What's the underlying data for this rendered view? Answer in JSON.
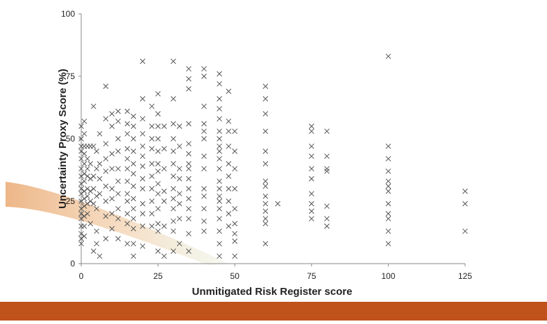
{
  "chart_data": {
    "type": "scatter",
    "x_label": "Unmitigated Risk Register score",
    "y_label": "Uncertainty Proxy Score (%)",
    "xlim": [
      0,
      125
    ],
    "ylim": [
      0,
      100
    ],
    "xticks": [
      0,
      25,
      50,
      75,
      100,
      125
    ],
    "yticks": [
      0,
      25,
      50,
      75,
      100
    ],
    "color": "#555555",
    "x": [
      0,
      0,
      0,
      0,
      0,
      0,
      0,
      0,
      0,
      0,
      0,
      0,
      0,
      0,
      0,
      0,
      0,
      0,
      1,
      1,
      1,
      1,
      1,
      1,
      1,
      1,
      1,
      1,
      1,
      1,
      1,
      2,
      2,
      2,
      2,
      2,
      2,
      2,
      2,
      3,
      3,
      3,
      3,
      3,
      3,
      4,
      4,
      4,
      4,
      4,
      4,
      5,
      5,
      5,
      5,
      5,
      5,
      6,
      6,
      6,
      6,
      6,
      8,
      8,
      8,
      8,
      8,
      8,
      8,
      8,
      8,
      10,
      10,
      10,
      10,
      10,
      10,
      10,
      10,
      12,
      12,
      12,
      12,
      12,
      12,
      12,
      12,
      12,
      12,
      15,
      15,
      15,
      15,
      15,
      15,
      15,
      15,
      15,
      15,
      15,
      15,
      17,
      17,
      17,
      17,
      17,
      17,
      17,
      17,
      17,
      17,
      17,
      17,
      17,
      20,
      20,
      20,
      20,
      20,
      20,
      20,
      20,
      20,
      20,
      20,
      20,
      20,
      23,
      23,
      23,
      23,
      23,
      23,
      23,
      23,
      23,
      23,
      25,
      25,
      25,
      25,
      25,
      25,
      25,
      25,
      25,
      25,
      25,
      25,
      25,
      27,
      27,
      27,
      27,
      27,
      27,
      27,
      30,
      30,
      30,
      30,
      30,
      30,
      30,
      30,
      30,
      30,
      30,
      30,
      30,
      32,
      32,
      32,
      32,
      32,
      32,
      32,
      32,
      35,
      35,
      35,
      35,
      35,
      35,
      35,
      35,
      35,
      35,
      35,
      35,
      35,
      35,
      35,
      40,
      40,
      40,
      40,
      40,
      40,
      40,
      40,
      40,
      40,
      40,
      40,
      40,
      45,
      45,
      45,
      45,
      45,
      45,
      45,
      45,
      45,
      45,
      45,
      45,
      45,
      45,
      45,
      45,
      45,
      45,
      45,
      45,
      48,
      48,
      48,
      48,
      48,
      48,
      48,
      48,
      48,
      48,
      50,
      50,
      50,
      50,
      50,
      50,
      50,
      50,
      50,
      60,
      60,
      60,
      60,
      60,
      60,
      60,
      60,
      60,
      60,
      60,
      60,
      60,
      60,
      64,
      75,
      75,
      75,
      75,
      75,
      75,
      75,
      75,
      75,
      75,
      80,
      80,
      80,
      80,
      80,
      80,
      80,
      100,
      100,
      100,
      100,
      100,
      100,
      100,
      100,
      100,
      100,
      100,
      100,
      125,
      125,
      125
    ],
    "values": [
      55,
      50,
      47,
      45,
      42,
      38,
      35,
      32,
      30,
      28,
      25,
      22,
      20,
      18,
      15,
      12,
      10,
      8,
      57,
      52,
      47,
      44,
      40,
      36,
      33,
      29,
      26,
      23,
      19,
      15,
      11,
      47,
      42,
      38,
      35,
      30,
      27,
      24,
      20,
      47,
      40,
      34,
      29,
      25,
      16,
      63,
      47,
      35,
      30,
      24,
      5,
      45,
      38,
      27,
      22,
      13,
      8,
      52,
      40,
      34,
      28,
      3,
      71,
      58,
      48,
      42,
      37,
      31,
      25,
      19,
      10,
      60,
      55,
      44,
      38,
      30,
      26,
      20,
      14,
      61,
      57,
      50,
      45,
      38,
      33,
      28,
      22,
      18,
      10,
      61,
      56,
      52,
      46,
      42,
      38,
      33,
      28,
      25,
      20,
      16,
      8,
      59,
      55,
      50,
      45,
      40,
      36,
      31,
      26,
      22,
      18,
      14,
      8,
      3,
      81,
      66,
      58,
      52,
      47,
      43,
      39,
      34,
      30,
      24,
      20,
      15,
      7,
      63,
      55,
      50,
      46,
      40,
      35,
      30,
      25,
      20,
      15,
      68,
      60,
      55,
      50,
      45,
      40,
      37,
      32,
      28,
      22,
      16,
      13,
      5,
      55,
      46,
      38,
      29,
      25,
      15,
      3,
      81,
      66,
      56,
      50,
      45,
      40,
      35,
      30,
      26,
      22,
      17,
      13,
      5,
      55,
      47,
      38,
      34,
      28,
      24,
      18,
      8,
      78,
      74,
      70,
      56,
      48,
      44,
      40,
      38,
      34,
      30,
      26,
      22,
      18,
      12,
      5,
      78,
      75,
      63,
      56,
      53,
      50,
      43,
      38,
      30,
      27,
      22,
      17,
      13,
      76,
      72,
      66,
      62,
      58,
      53,
      50,
      47,
      45,
      42,
      38,
      33,
      30,
      27,
      25,
      22,
      18,
      13,
      8,
      3,
      69,
      57,
      53,
      47,
      40,
      35,
      30,
      25,
      20,
      15,
      53,
      45,
      38,
      30,
      22,
      16,
      12,
      9,
      3,
      71,
      66,
      60,
      53,
      45,
      40,
      33,
      31,
      27,
      24,
      21,
      18,
      16,
      8,
      24,
      55,
      53,
      47,
      43,
      38,
      34,
      28,
      24,
      21,
      18,
      53,
      43,
      38,
      37,
      23,
      18,
      15,
      83,
      47,
      42,
      37,
      33,
      31,
      29,
      24,
      20,
      18,
      13,
      8,
      29,
      24,
      13
    ]
  }
}
